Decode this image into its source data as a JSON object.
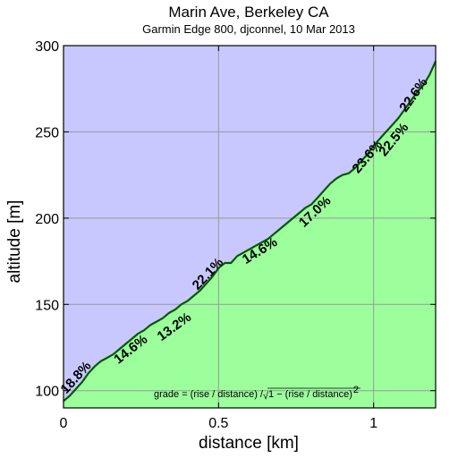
{
  "chart_data": {
    "type": "area",
    "title": "Marin Ave, Berkeley CA",
    "subtitle": "Garmin Edge 800, djconnel, 10 Mar 2013",
    "xlabel": "distance [km]",
    "ylabel": "altitude [m]",
    "xlim": [
      0,
      1.2
    ],
    "ylim": [
      90,
      300
    ],
    "x_ticks": [
      0,
      0.5,
      1
    ],
    "x_tick_labels": [
      "0",
      "0.5",
      "1"
    ],
    "y_ticks": [
      100,
      150,
      200,
      250,
      300
    ],
    "y_tick_labels": [
      "100",
      "150",
      "200",
      "250",
      "300"
    ],
    "grid": true,
    "colors": {
      "above": "#c8c8ff",
      "below": "#9cff9c",
      "line": "#005a00",
      "grid": "#999999"
    },
    "series": [
      {
        "x": [
          0,
          0.02,
          0.04,
          0.06,
          0.08,
          0.1,
          0.12,
          0.14,
          0.16,
          0.18,
          0.2,
          0.22,
          0.24,
          0.26,
          0.28,
          0.3,
          0.32,
          0.34,
          0.36,
          0.38,
          0.4,
          0.42,
          0.44,
          0.46,
          0.48,
          0.5,
          0.52,
          0.54,
          0.56,
          0.58,
          0.6,
          0.62,
          0.64,
          0.66,
          0.68,
          0.7,
          0.72,
          0.74,
          0.76,
          0.78,
          0.8,
          0.82,
          0.84,
          0.86,
          0.88,
          0.9,
          0.92,
          0.94,
          0.96,
          0.98,
          1.0,
          1.02,
          1.04,
          1.06,
          1.08,
          1.1,
          1.12,
          1.14,
          1.16,
          1.18,
          1.2
        ],
        "y": [
          94,
          97,
          101,
          105,
          110,
          114,
          117,
          119,
          121,
          124,
          127,
          130,
          133,
          135,
          138,
          140,
          142,
          145,
          147,
          150,
          152,
          155,
          158,
          162,
          166,
          171,
          174,
          174,
          178,
          180,
          182,
          184,
          186,
          188,
          191,
          194,
          197,
          200,
          203,
          206,
          208,
          212,
          216,
          220,
          223,
          225,
          226,
          229,
          233,
          237,
          242,
          246,
          250,
          254,
          258,
          263,
          268,
          273,
          277,
          283,
          291
        ]
      }
    ],
    "annotations": [
      {
        "text": "18.8%",
        "x": 0.05,
        "y": 106
      },
      {
        "text": "14.6%",
        "x": 0.225,
        "y": 122
      },
      {
        "text": "13.2%",
        "x": 0.365,
        "y": 135
      },
      {
        "text": "22.1%",
        "x": 0.475,
        "y": 166
      },
      {
        "text": "14.6%",
        "x": 0.64,
        "y": 179
      },
      {
        "text": "17.0%",
        "x": 0.82,
        "y": 202
      },
      {
        "text": "23.6%",
        "x": 0.99,
        "y": 234
      },
      {
        "text": "22.5%",
        "x": 1.075,
        "y": 244
      },
      {
        "text": "22.6%",
        "x": 1.14,
        "y": 270
      }
    ],
    "formula": {
      "prefix": "grade = (rise / distance) / ",
      "radical": "√",
      "inner": "1 − (rise / distance)",
      "exponent": "2"
    }
  }
}
